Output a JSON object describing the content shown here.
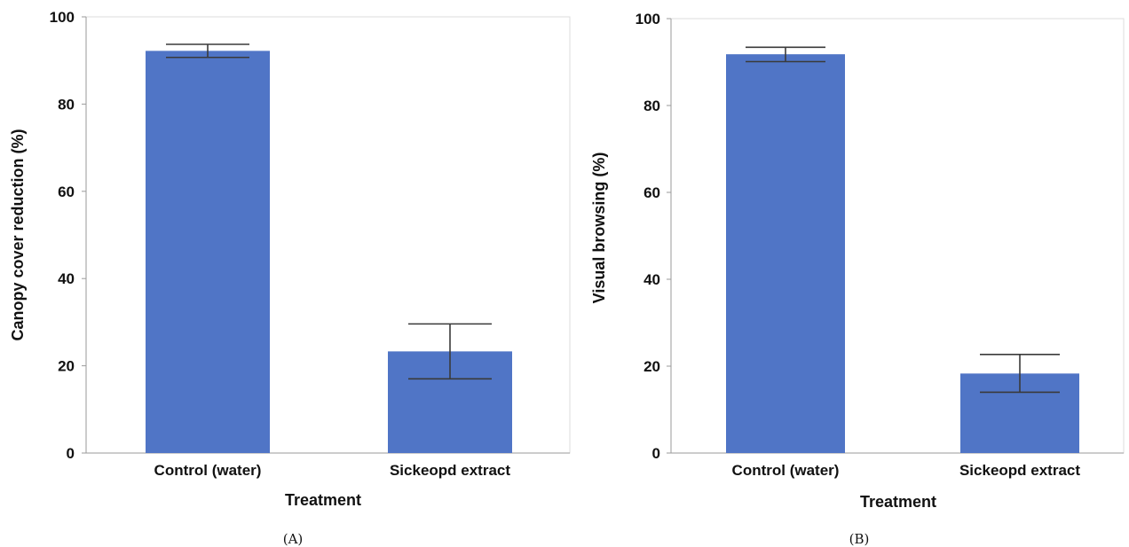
{
  "chart_data": [
    {
      "type": "bar",
      "caption": "(A)",
      "categories": [
        "Control (water)",
        "Sickeopd extract"
      ],
      "values": [
        92.2,
        23.3
      ],
      "error_low": [
        90.7,
        17.0
      ],
      "error_high": [
        93.7,
        29.6
      ],
      "xlabel": "Treatment",
      "ylabel": "Canopy cover reduction (%)",
      "ylim": [
        0,
        100
      ],
      "yticks": [
        "0",
        "20",
        "40",
        "60",
        "80",
        "100"
      ],
      "grid": false,
      "bar_color": "#5075c6"
    },
    {
      "type": "bar",
      "caption": "(B)",
      "categories": [
        "Control (water)",
        "Sickeopd extract"
      ],
      "values": [
        91.8,
        18.3
      ],
      "error_low": [
        90.1,
        14.0
      ],
      "error_high": [
        93.4,
        22.7
      ],
      "xlabel": "Treatment",
      "ylabel": "Visual browsing (%)",
      "ylim": [
        0,
        100
      ],
      "yticks": [
        "0",
        "20",
        "40",
        "60",
        "80",
        "100"
      ],
      "grid": false,
      "bar_color": "#5075c6"
    }
  ]
}
